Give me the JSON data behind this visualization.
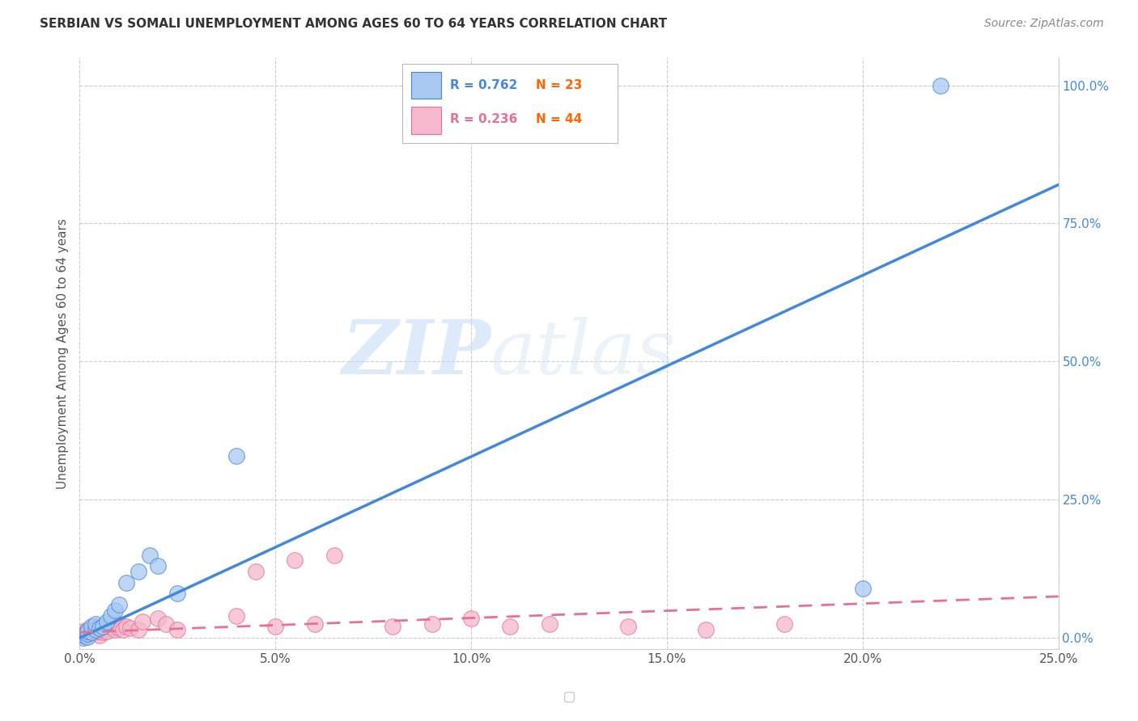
{
  "title": "SERBIAN VS SOMALI UNEMPLOYMENT AMONG AGES 60 TO 64 YEARS CORRELATION CHART",
  "source": "Source: ZipAtlas.com",
  "ylabel": "Unemployment Among Ages 60 to 64 years",
  "xlim": [
    0.0,
    0.25
  ],
  "ylim": [
    -0.02,
    1.05
  ],
  "xticks": [
    0.0,
    0.05,
    0.1,
    0.15,
    0.2,
    0.25
  ],
  "yticks": [
    0.0,
    0.25,
    0.5,
    0.75,
    1.0
  ],
  "xtick_labels": [
    "0.0%",
    "5.0%",
    "10.0%",
    "15.0%",
    "20.0%",
    "25.0%"
  ],
  "ytick_labels": [
    "0.0%",
    "25.0%",
    "50.0%",
    "75.0%",
    "100.0%"
  ],
  "serbian_R": 0.762,
  "serbian_N": 23,
  "somali_R": 0.236,
  "somali_N": 44,
  "serbian_color": "#a8c8f0",
  "somali_color": "#f5b8cc",
  "serbian_line_color": "#4488dd",
  "somali_line_color": "#e87090",
  "watermark_zip": "ZIP",
  "watermark_atlas": "atlas",
  "background_color": "#ffffff",
  "grid_color": "#cccccc",
  "serbian_x": [
    0.001,
    0.001,
    0.002,
    0.002,
    0.002,
    0.003,
    0.003,
    0.004,
    0.004,
    0.005,
    0.006,
    0.007,
    0.008,
    0.009,
    0.01,
    0.012,
    0.015,
    0.018,
    0.02,
    0.025,
    0.04,
    0.2,
    0.22
  ],
  "serbian_y": [
    0.0,
    0.005,
    0.002,
    0.008,
    0.012,
    0.01,
    0.02,
    0.015,
    0.025,
    0.018,
    0.02,
    0.03,
    0.04,
    0.05,
    0.06,
    0.1,
    0.12,
    0.15,
    0.13,
    0.08,
    0.33,
    0.09,
    1.0
  ],
  "somali_x": [
    0.001,
    0.001,
    0.002,
    0.002,
    0.002,
    0.003,
    0.003,
    0.003,
    0.004,
    0.004,
    0.004,
    0.005,
    0.005,
    0.005,
    0.006,
    0.006,
    0.007,
    0.008,
    0.008,
    0.009,
    0.01,
    0.01,
    0.011,
    0.012,
    0.013,
    0.015,
    0.016,
    0.02,
    0.022,
    0.025,
    0.04,
    0.045,
    0.05,
    0.055,
    0.06,
    0.065,
    0.08,
    0.09,
    0.1,
    0.11,
    0.12,
    0.14,
    0.16,
    0.18
  ],
  "somali_y": [
    0.008,
    0.012,
    0.005,
    0.01,
    0.015,
    0.008,
    0.012,
    0.018,
    0.01,
    0.015,
    0.02,
    0.005,
    0.012,
    0.018,
    0.01,
    0.015,
    0.012,
    0.02,
    0.025,
    0.015,
    0.018,
    0.025,
    0.015,
    0.02,
    0.018,
    0.015,
    0.03,
    0.035,
    0.025,
    0.015,
    0.04,
    0.12,
    0.02,
    0.14,
    0.025,
    0.15,
    0.02,
    0.025,
    0.035,
    0.02,
    0.025,
    0.02,
    0.015,
    0.025
  ],
  "serbian_trend_x": [
    0.0,
    0.25
  ],
  "serbian_trend_y": [
    0.0,
    0.82
  ],
  "somali_trend_x": [
    0.0,
    0.25
  ],
  "somali_trend_y": [
    0.01,
    0.075
  ]
}
